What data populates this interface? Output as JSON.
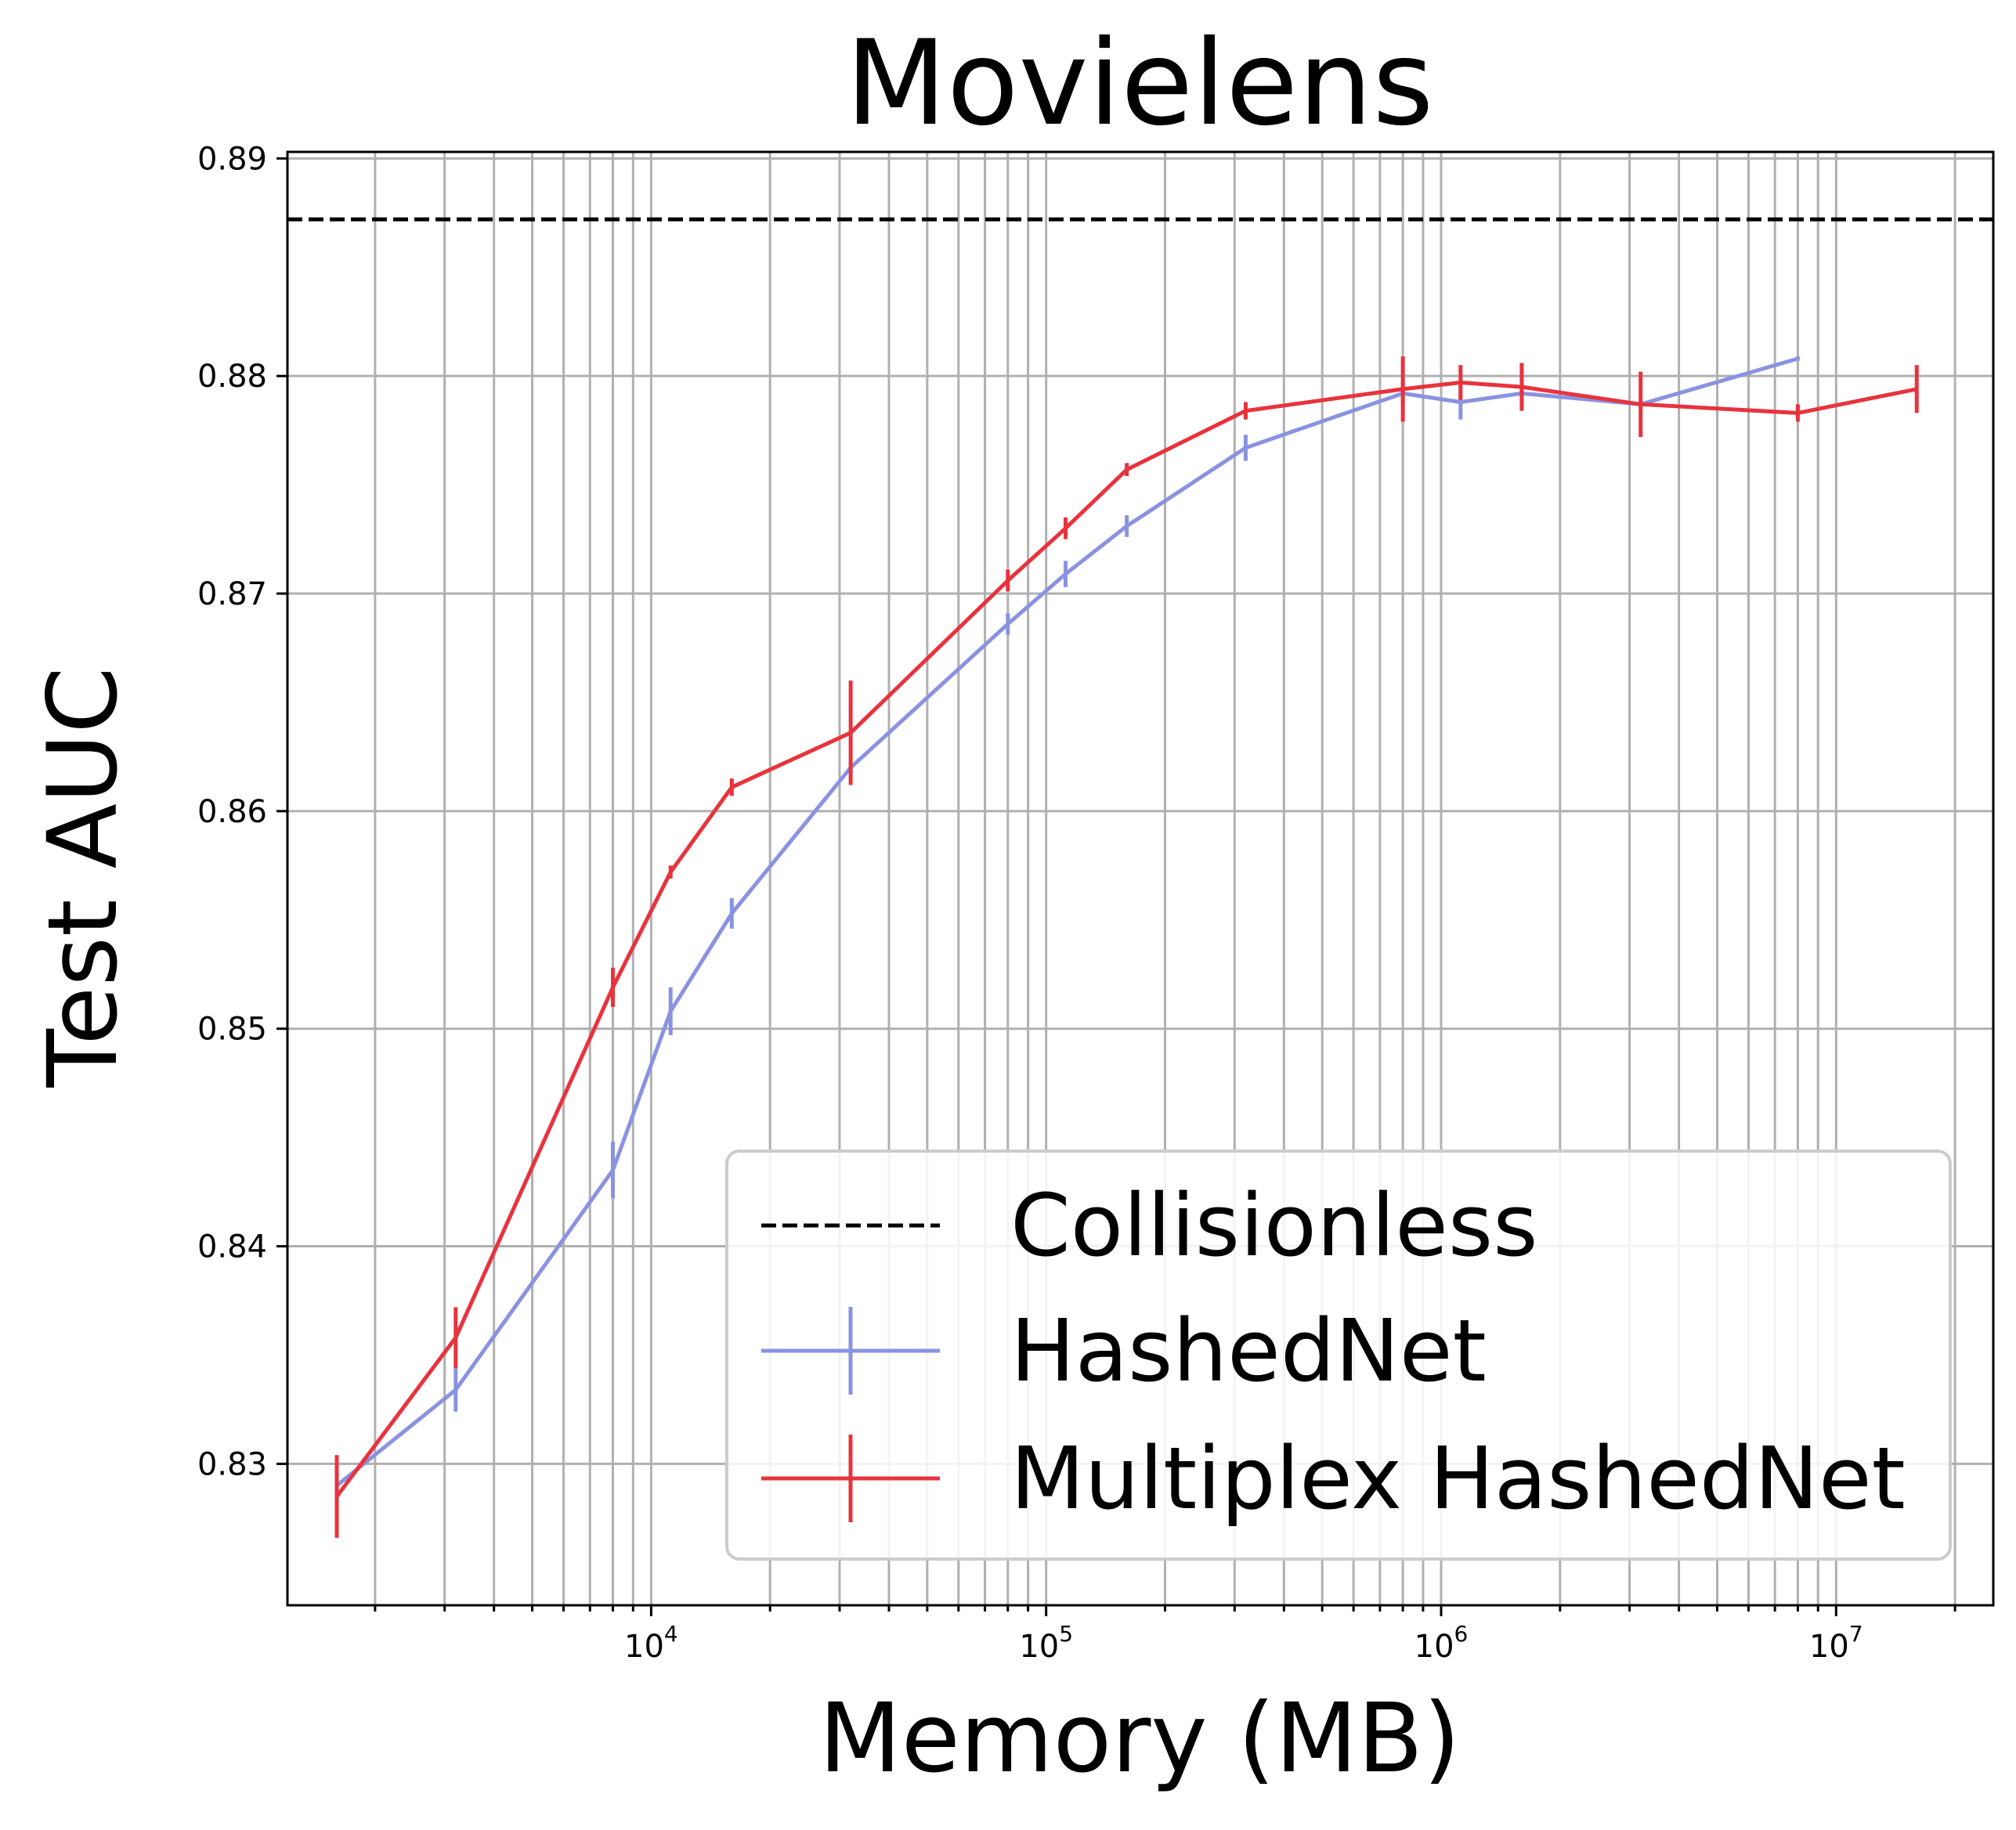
{
  "chart_data": {
    "type": "line",
    "title": "Movielens",
    "xlabel": "Memory (MB)",
    "ylabel": "Test AUC",
    "xscale": "log",
    "xlim": [
      1200,
      25000000
    ],
    "ylim": [
      0.8235,
      0.8903
    ],
    "grid": "major and minor",
    "legend_position": "lower-right",
    "x_ticks": [
      {
        "value": 10000,
        "base": "10",
        "exp": "4"
      },
      {
        "value": 100000,
        "base": "10",
        "exp": "5"
      },
      {
        "value": 1000000,
        "base": "10",
        "exp": "6"
      },
      {
        "value": 10000000,
        "base": "10",
        "exp": "7"
      }
    ],
    "y_ticks": [
      {
        "value": 0.83,
        "label": "0.83"
      },
      {
        "value": 0.84,
        "label": "0.84"
      },
      {
        "value": 0.85,
        "label": "0.85"
      },
      {
        "value": 0.86,
        "label": "0.86"
      },
      {
        "value": 0.87,
        "label": "0.87"
      },
      {
        "value": 0.88,
        "label": "0.88"
      },
      {
        "value": 0.89,
        "label": "0.89"
      }
    ],
    "reference_line": {
      "name": "Collisionless",
      "y": 0.8872,
      "color": "#000000",
      "style": "dashed"
    },
    "series": [
      {
        "name": "HashedNet",
        "color": "#8a93e0",
        "points": [
          {
            "x": 1600,
            "y": 0.829,
            "err": 0.0004
          },
          {
            "x": 3200,
            "y": 0.8334,
            "err": 0.001
          },
          {
            "x": 8000,
            "y": 0.8435,
            "err": 0.0013
          },
          {
            "x": 11200,
            "y": 0.8508,
            "err": 0.0011
          },
          {
            "x": 16000,
            "y": 0.8553,
            "err": 0.0007
          },
          {
            "x": 32000,
            "y": 0.862,
            "err": 0.0003
          },
          {
            "x": 80000,
            "y": 0.8686,
            "err": 0.0005
          },
          {
            "x": 112000,
            "y": 0.8709,
            "err": 0.0006
          },
          {
            "x": 160000,
            "y": 0.8731,
            "err": 0.0005
          },
          {
            "x": 320000,
            "y": 0.8767,
            "err": 0.0006
          },
          {
            "x": 800000,
            "y": 0.8792,
            "err": 0.0005
          },
          {
            "x": 1120000,
            "y": 0.8788,
            "err": 0.0008
          },
          {
            "x": 1600000,
            "y": 0.8792,
            "err": 0.0003
          },
          {
            "x": 3200000,
            "y": 0.8787,
            "err": 0.0002
          },
          {
            "x": 8000000,
            "y": 0.8808,
            "err": 0.0001
          }
        ]
      },
      {
        "name": "Multiplex HashedNet",
        "color": "#e8333d",
        "points": [
          {
            "x": 1600,
            "y": 0.8285,
            "err": 0.0019
          },
          {
            "x": 3200,
            "y": 0.8358,
            "err": 0.0014
          },
          {
            "x": 8000,
            "y": 0.8519,
            "err": 0.0009
          },
          {
            "x": 11200,
            "y": 0.8572,
            "err": 0.0003
          },
          {
            "x": 16000,
            "y": 0.8611,
            "err": 0.0004
          },
          {
            "x": 32000,
            "y": 0.8636,
            "err": 0.0024
          },
          {
            "x": 80000,
            "y": 0.8706,
            "err": 0.0005
          },
          {
            "x": 112000,
            "y": 0.873,
            "err": 0.0005
          },
          {
            "x": 160000,
            "y": 0.8757,
            "err": 0.0003
          },
          {
            "x": 320000,
            "y": 0.8784,
            "err": 0.0004
          },
          {
            "x": 800000,
            "y": 0.8794,
            "err": 0.0015
          },
          {
            "x": 1120000,
            "y": 0.8797,
            "err": 0.0008
          },
          {
            "x": 1600000,
            "y": 0.8795,
            "err": 0.0011
          },
          {
            "x": 3200000,
            "y": 0.8787,
            "err": 0.0015
          },
          {
            "x": 8000000,
            "y": 0.8783,
            "err": 0.0004
          },
          {
            "x": 16000000,
            "y": 0.8794,
            "err": 0.0011
          }
        ]
      }
    ]
  }
}
